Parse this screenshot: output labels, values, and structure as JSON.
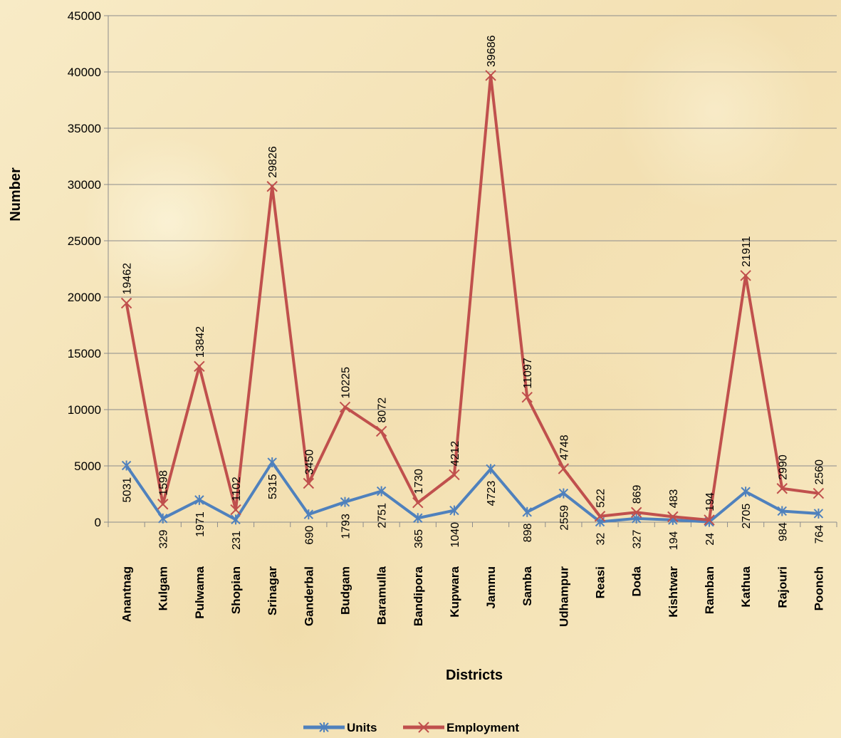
{
  "chart_data": {
    "type": "line",
    "xlabel": "Districts",
    "ylabel": "Number",
    "ylim": [
      0,
      45000
    ],
    "yticks": [
      0,
      5000,
      10000,
      15000,
      20000,
      25000,
      30000,
      35000,
      40000,
      45000
    ],
    "grid": true,
    "legend_position": "bottom",
    "categories": [
      "Anantnag",
      "Kulgam",
      "Pulwama",
      "Shopian",
      "Srinagar",
      "Ganderbal",
      "Budgam",
      "Baramulla",
      "Bandipora",
      "Kupwara",
      "Jammu",
      "Samba",
      "Udhampur",
      "Reasi",
      "Doda",
      "Kishtwar",
      "Ramban",
      "Kathua",
      "Rajouri",
      "Poonch"
    ],
    "series": [
      {
        "name": "Units",
        "color": "#4f81bd",
        "marker": "asterisk",
        "values": [
          5031,
          329,
          1971,
          231,
          5315,
          690,
          1793,
          2751,
          365,
          1040,
          4723,
          898,
          2559,
          32,
          327,
          194,
          24,
          2705,
          984,
          764
        ]
      },
      {
        "name": "Employment",
        "color": "#c0504d",
        "marker": "x",
        "values": [
          19462,
          1598,
          13842,
          1102,
          29826,
          3450,
          10225,
          8072,
          1730,
          4212,
          39686,
          11097,
          4748,
          522,
          869,
          483,
          194,
          21911,
          2990,
          2560
        ]
      }
    ]
  }
}
